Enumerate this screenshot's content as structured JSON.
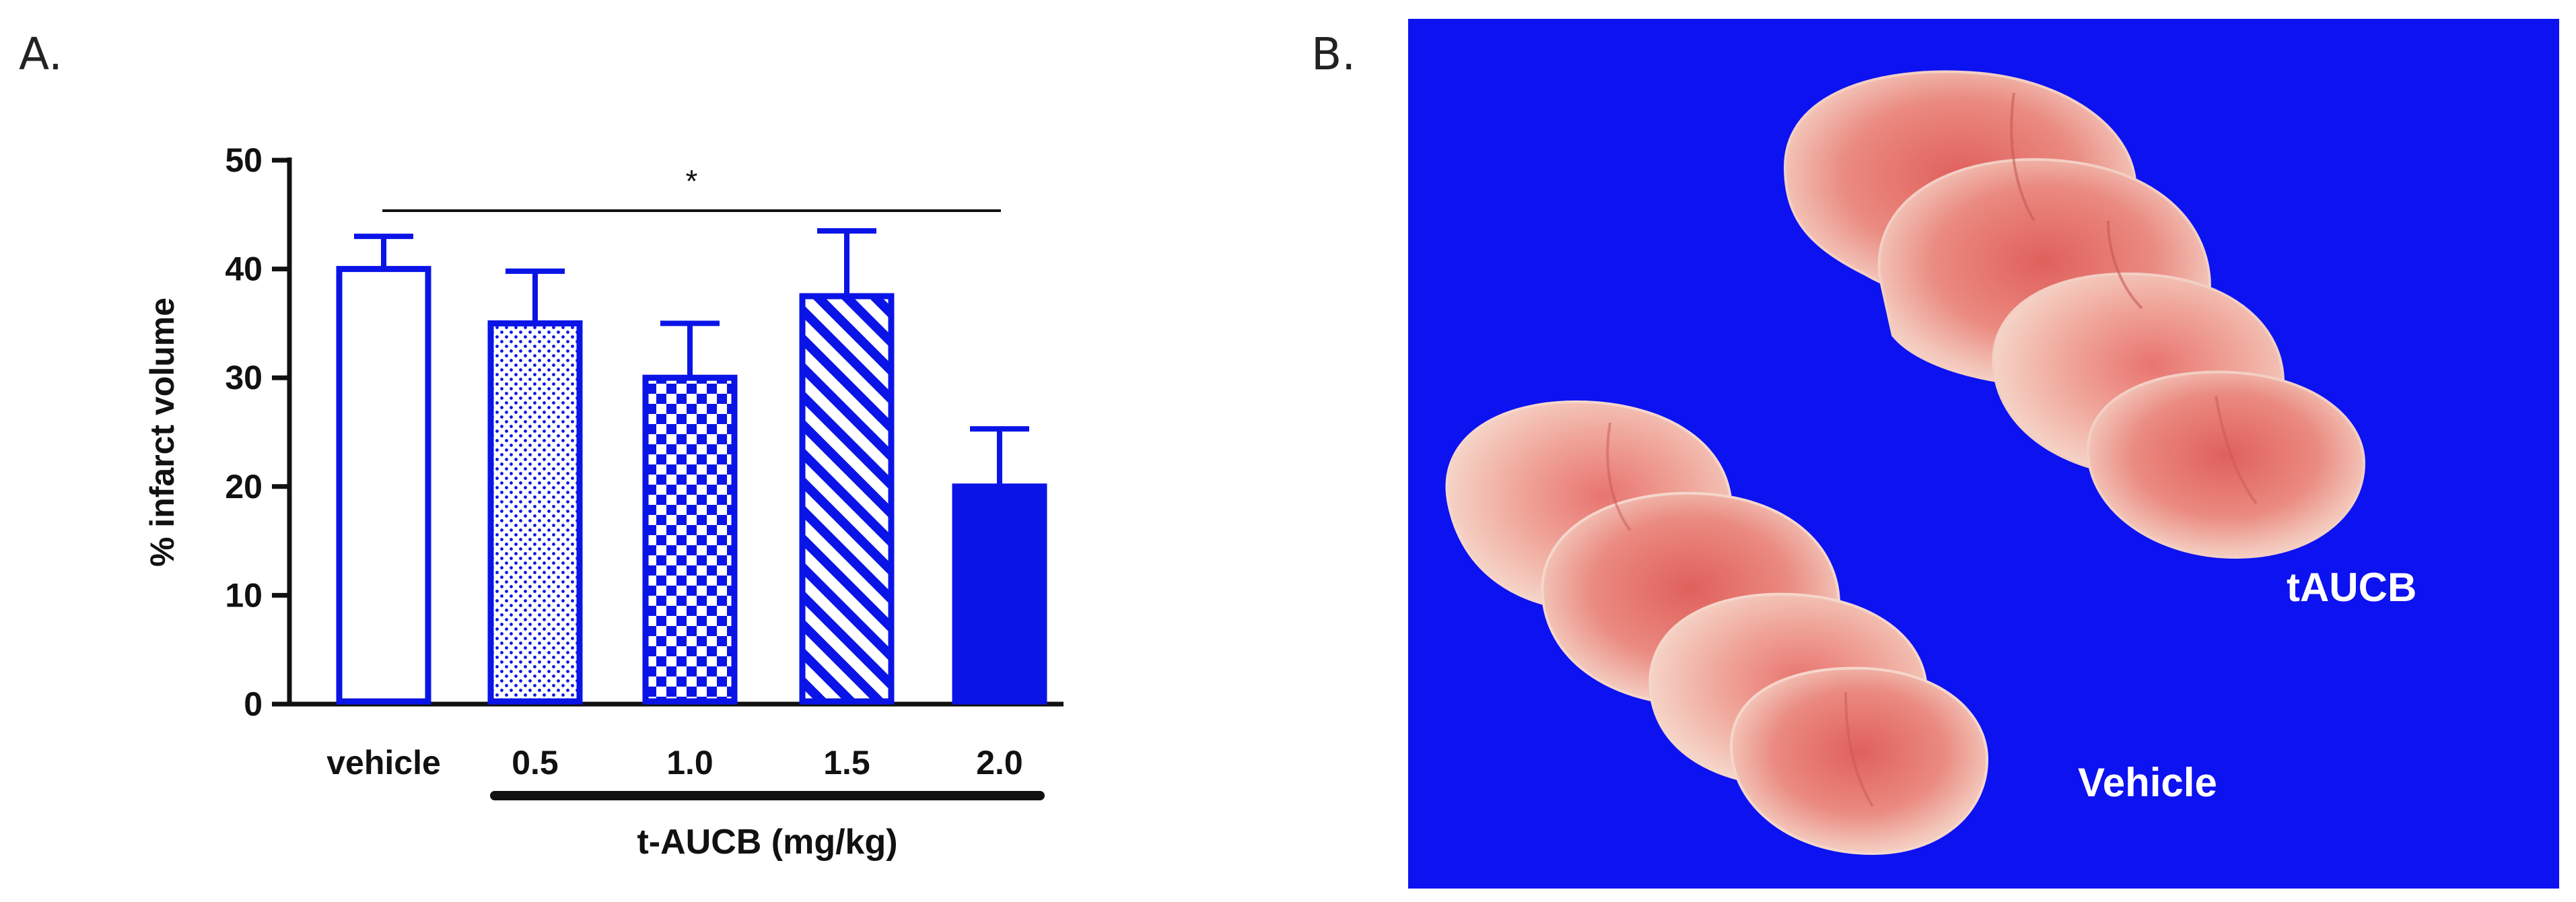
{
  "panels": {
    "a_label": "A.",
    "b_label": "B."
  },
  "colors": {
    "series": "#0a14e6",
    "photo_bg": "#0d12f0",
    "tissue_light": "#f2c8c0",
    "tissue_red": "#e8776f"
  },
  "chart_data": {
    "type": "bar",
    "categories": [
      "vehicle",
      "0.5",
      "1.0",
      "1.5",
      "2.0"
    ],
    "values": [
      40,
      35,
      30,
      37.5,
      20
    ],
    "errors": [
      3,
      4.8,
      5,
      6,
      5.3
    ],
    "patterns": [
      "empty",
      "dots",
      "checker",
      "diagonal",
      "solid"
    ],
    "ylabel": "% infarct volume",
    "xlabel": "t-AUCB (mg/kg)",
    "ylim": [
      0,
      50
    ],
    "yticks": [
      0,
      10,
      20,
      30,
      40,
      50
    ],
    "significance": {
      "label": "*",
      "from": "vehicle",
      "to": "2.0"
    },
    "grid": false,
    "legend": "none"
  },
  "photo": {
    "label_top": "tAUCB",
    "label_bottom": "Vehicle"
  }
}
